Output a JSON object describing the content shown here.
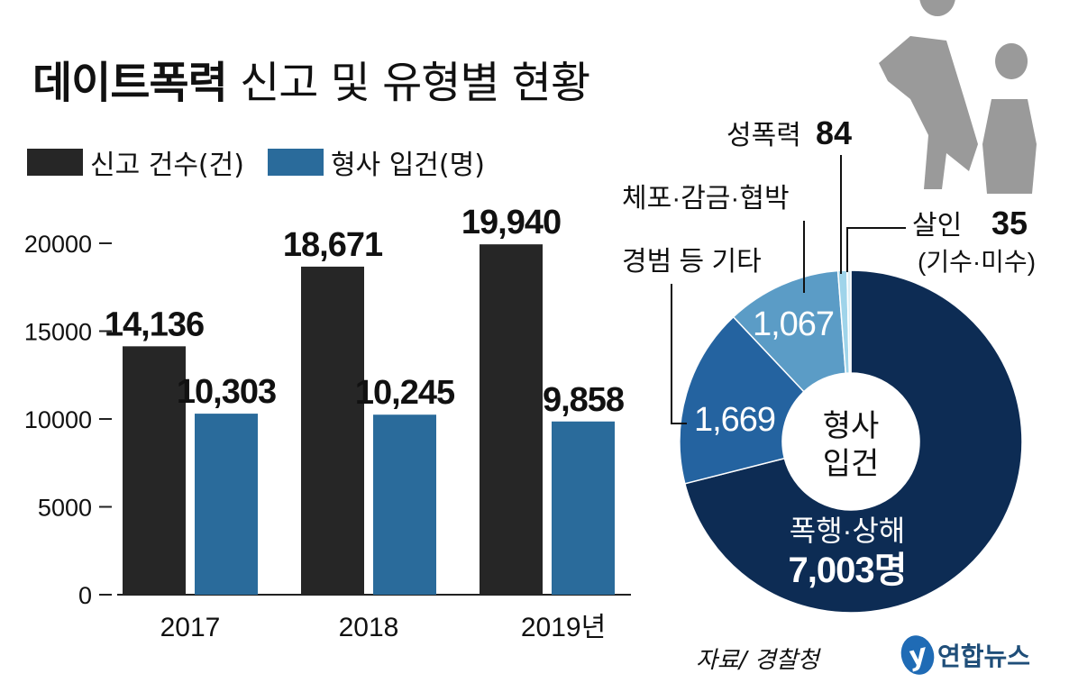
{
  "title": {
    "bold": "데이트폭력",
    "light": "신고 및 유형별 현황"
  },
  "legend": [
    {
      "label": "신고 건수(건)",
      "color": "#262626"
    },
    {
      "label": "형사 입건(명)",
      "color": "#2a6b9b"
    }
  ],
  "chart_data": [
    {
      "type": "bar",
      "categories": [
        "2017",
        "2018",
        "2019년"
      ],
      "series": [
        {
          "name": "신고 건수(건)",
          "values": [
            14136,
            18671,
            19940
          ],
          "labels": [
            "14,136",
            "18,671",
            "19,940"
          ],
          "color": "#262626"
        },
        {
          "name": "형사 입건(명)",
          "values": [
            10303,
            10245,
            9858
          ],
          "labels": [
            "10,303",
            "10,245",
            "9,858"
          ],
          "color": "#2a6b9b"
        }
      ],
      "yticks": [
        "20000",
        "15000",
        "10000",
        "5000",
        "0"
      ],
      "ytick_values": [
        20000,
        15000,
        10000,
        5000,
        0
      ],
      "ylim": [
        0,
        20000
      ],
      "legend_position": "top-left"
    },
    {
      "type": "pie",
      "center_label": [
        "형사",
        "입건"
      ],
      "slices": [
        {
          "name": "폭행·상해",
          "value": 7003,
          "value_label": "7,003명",
          "color": "#0d2c54"
        },
        {
          "name": "경범 등 기타",
          "value": 1669,
          "value_label": "1,669",
          "color": "#2463a0"
        },
        {
          "name": "체포·감금·협박",
          "value": 1067,
          "value_label": "1,067",
          "color": "#5b9cc6"
        },
        {
          "name": "성폭력",
          "value": 84,
          "value_label": "84",
          "color": "#9fd4ea"
        },
        {
          "name": "살인",
          "sub": "(기수·미수)",
          "value": 35,
          "value_label": "35",
          "color": "#d9eef6"
        }
      ]
    }
  ],
  "source": "자료/ 경찰청",
  "logo": {
    "mark": "y",
    "text": "연합뉴스"
  }
}
